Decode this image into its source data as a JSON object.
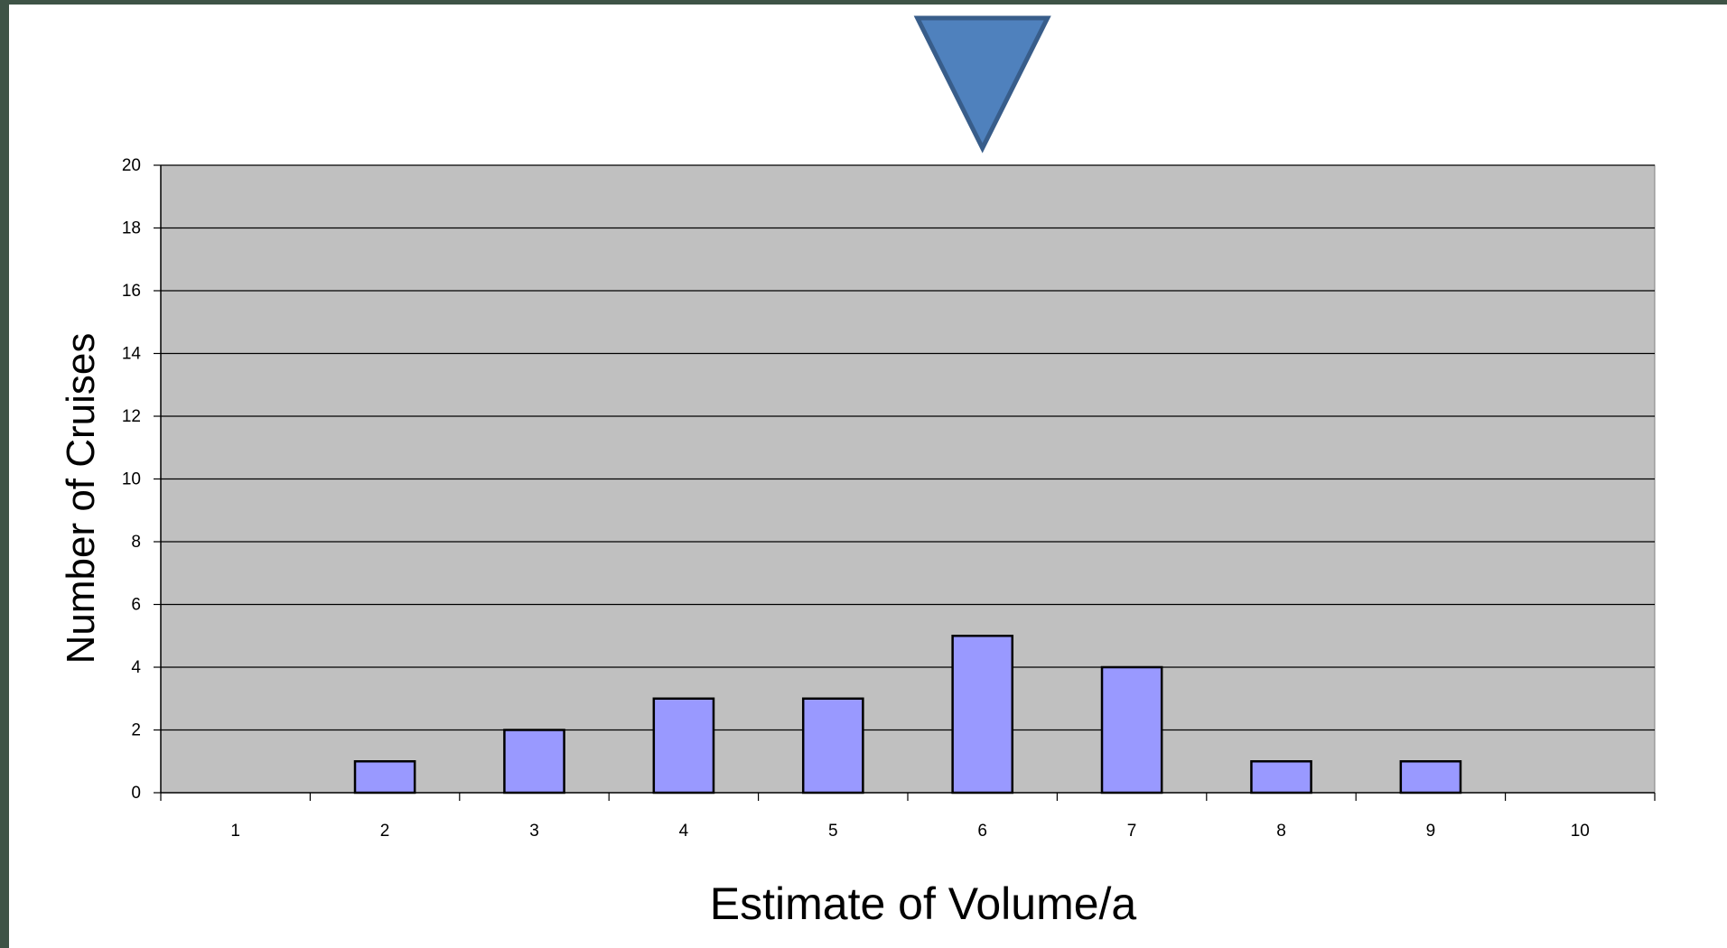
{
  "chart_data": {
    "type": "bar",
    "title": "",
    "xlabel": "Estimate of Volume/a",
    "ylabel": "Number of Cruises",
    "categories": [
      "1",
      "2",
      "3",
      "4",
      "5",
      "6",
      "7",
      "8",
      "9",
      "10"
    ],
    "values": [
      0,
      1,
      2,
      3,
      3,
      5,
      4,
      1,
      1,
      0
    ],
    "ylim": [
      0,
      20
    ],
    "yticks": [
      "0",
      "2",
      "4",
      "6",
      "8",
      "10",
      "12",
      "14",
      "16",
      "18",
      "20"
    ],
    "grid": "horizontal",
    "legend": "none",
    "colors": {
      "plot_background": "#c0c0c0",
      "bar_fill": "#9999ff",
      "bar_stroke": "#000000",
      "gridline": "#000000",
      "frame": "#3e5346"
    },
    "annotations": [
      {
        "type": "marker",
        "shape": "down-triangle",
        "at_category": "6",
        "fill": "#4f81bd",
        "stroke": "#385d8a"
      }
    ]
  }
}
